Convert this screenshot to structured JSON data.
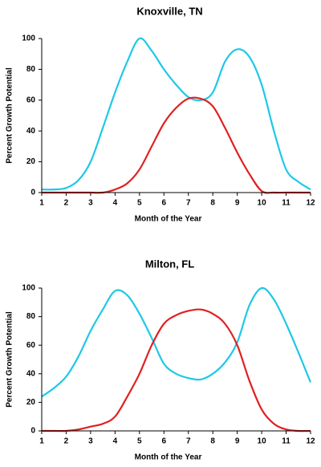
{
  "chart_data": [
    {
      "type": "line",
      "title": "Knoxville, TN",
      "x_label": "Month of the Year",
      "y_label": "Percent Growth Potential",
      "x": [
        1,
        1.5,
        2,
        2.5,
        3,
        3.5,
        4,
        4.5,
        5,
        5.5,
        6,
        6.5,
        7,
        7.5,
        8,
        8.5,
        9,
        9.5,
        10,
        10.5,
        11,
        11.5,
        12
      ],
      "series": [
        {
          "color": "#1ec8e8",
          "values": [
            2,
            2,
            3,
            8,
            20,
            42,
            65,
            85,
            100,
            92,
            80,
            70,
            62,
            60,
            65,
            85,
            93,
            88,
            70,
            40,
            15,
            7,
            2
          ]
        },
        {
          "color": "#e02020",
          "values": [
            0,
            0,
            0,
            0,
            0,
            0,
            2,
            6,
            15,
            30,
            45,
            55,
            61,
            61,
            56,
            42,
            26,
            12,
            1,
            0,
            0,
            0,
            0
          ]
        }
      ],
      "xlim": [
        1,
        12
      ],
      "xticks": [
        1,
        2,
        3,
        4,
        5,
        6,
        7,
        8,
        9,
        10,
        11,
        12
      ],
      "ylim": [
        0,
        100
      ],
      "yticks": [
        0,
        20,
        40,
        60,
        80,
        100
      ],
      "smooth": true
    },
    {
      "type": "line",
      "title": "Milton, FL",
      "x_label": "Month of the Year",
      "y_label": "Percent Growth Potential",
      "x": [
        1,
        1.5,
        2,
        2.5,
        3,
        3.5,
        4,
        4.5,
        5,
        5.5,
        6,
        6.5,
        7,
        7.5,
        8,
        8.5,
        9,
        9.5,
        10,
        10.5,
        11,
        11.5,
        12
      ],
      "series": [
        {
          "color": "#1ec8e8",
          "values": [
            24,
            30,
            38,
            52,
            70,
            85,
            98,
            95,
            82,
            65,
            47,
            40,
            37,
            36,
            40,
            48,
            62,
            88,
            100,
            92,
            75,
            55,
            34
          ]
        },
        {
          "color": "#e02020",
          "values": [
            0,
            0,
            0,
            1,
            3,
            5,
            10,
            24,
            40,
            60,
            75,
            81,
            84,
            85,
            82,
            75,
            60,
            35,
            15,
            5,
            1,
            0,
            0
          ]
        }
      ],
      "xlim": [
        1,
        12
      ],
      "xticks": [
        1,
        2,
        3,
        4,
        5,
        6,
        7,
        8,
        9,
        10,
        11,
        12
      ],
      "ylim": [
        0,
        100
      ],
      "yticks": [
        0,
        20,
        40,
        60,
        80,
        100
      ],
      "smooth": true
    }
  ]
}
